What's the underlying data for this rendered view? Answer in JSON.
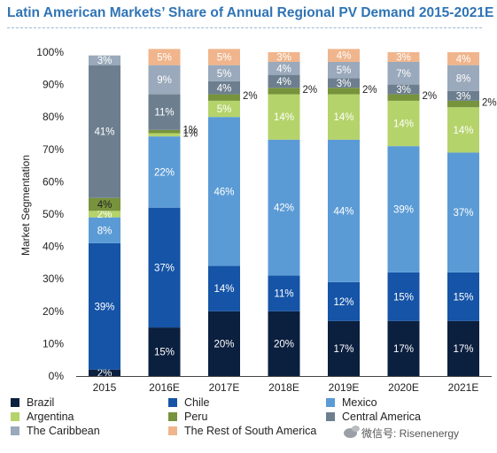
{
  "chart_data": {
    "type": "bar",
    "stacked": true,
    "title": "Latin American Markets’ Share of Annual Regional PV Demand 2015-2021E",
    "xlabel": "",
    "ylabel": "Market Segmentation",
    "ylim": [
      0,
      100
    ],
    "yticks": [
      "0%",
      "10%",
      "20%",
      "30%",
      "40%",
      "50%",
      "60%",
      "70%",
      "80%",
      "90%",
      "100%"
    ],
    "categories": [
      "2015",
      "2016E",
      "2017E",
      "2018E",
      "2019E",
      "2020E",
      "2021E"
    ],
    "series": [
      {
        "name": "Brazil",
        "color": "#0b1f3f",
        "values": [
          2,
          15,
          20,
          20,
          17,
          17,
          17
        ],
        "labels": [
          "2%",
          "15%",
          "20%",
          "20%",
          "17%",
          "17%",
          "17%"
        ]
      },
      {
        "name": "Chile",
        "color": "#1554a6",
        "values": [
          39,
          37,
          14,
          11,
          12,
          15,
          15
        ],
        "labels": [
          "39%",
          "37%",
          "14%",
          "11%",
          "12%",
          "15%",
          "15%"
        ]
      },
      {
        "name": "Mexico",
        "color": "#5b9bd5",
        "values": [
          8,
          22,
          46,
          42,
          44,
          39,
          37
        ],
        "labels": [
          "8%",
          "22%",
          "46%",
          "42%",
          "44%",
          "39%",
          "37%"
        ]
      },
      {
        "name": "Argentina",
        "color": "#b5d36b",
        "values": [
          2,
          1,
          5,
          14,
          14,
          14,
          14
        ],
        "labels": [
          "2%",
          "1%",
          "5%",
          "14%",
          "14%",
          "14%",
          "14%"
        ]
      },
      {
        "name": "Peru",
        "color": "#77933c",
        "values": [
          4,
          1,
          2,
          2,
          2,
          2,
          2
        ],
        "labels": [
          "4%",
          "1%",
          "2%",
          "2%",
          "2%",
          "2%",
          "2%"
        ]
      },
      {
        "name": "Central America",
        "color": "#6d7f8f",
        "values": [
          41,
          11,
          4,
          4,
          3,
          3,
          3
        ],
        "labels": [
          "41%",
          "11%",
          "4%",
          "4%",
          "3%",
          "3%",
          "3%"
        ]
      },
      {
        "name": "The Caribbean",
        "color": "#9aa9bb",
        "values": [
          3,
          9,
          5,
          4,
          5,
          7,
          8
        ],
        "labels": [
          "3%",
          "9%",
          "5%",
          "4%",
          "5%",
          "7%",
          "8%"
        ]
      },
      {
        "name": "The Rest of South America",
        "color": "#f0b58c",
        "values": [
          0,
          5,
          5,
          3,
          4,
          3,
          4
        ],
        "labels": [
          "",
          "5%",
          "5%",
          "3%",
          "4%",
          "3%",
          "4%"
        ]
      }
    ],
    "legend_position": "bottom",
    "grid": false
  },
  "watermark": {
    "text": "微信号: Risenenergy"
  }
}
